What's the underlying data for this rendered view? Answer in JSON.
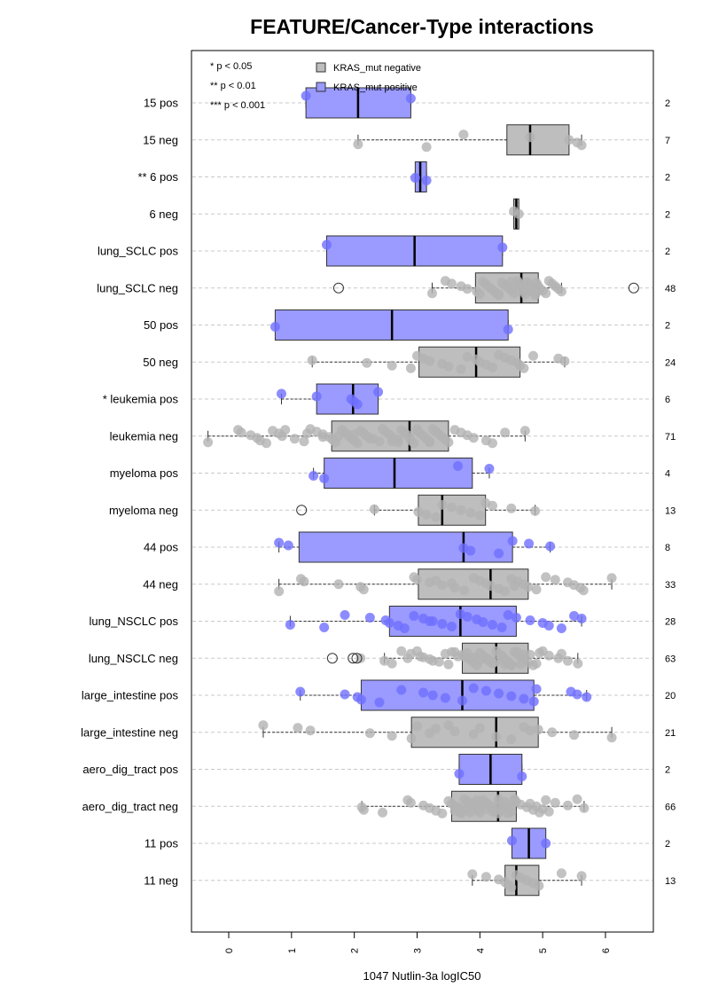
{
  "chart_data": {
    "type": "box",
    "title": "FEATURE/Cancer-Type interactions",
    "xlabel": "1047 Nutlin-3a logIC50",
    "xlim": [
      -0.6,
      6.75
    ],
    "x_ticks": [
      0,
      1,
      2,
      3,
      4,
      5,
      6
    ],
    "x_tick_labels": [
      "0",
      "1",
      "2",
      "3",
      "4",
      "5",
      "6"
    ],
    "orientation": "horizontal",
    "grid": "dashed horizontal lines at each row",
    "significance_key": [
      "* p < 0.05",
      "** p < 0.01",
      "*** p < 0.001"
    ],
    "legend": {
      "position": "top",
      "entries": [
        {
          "label": "KRAS_mut negative",
          "color": "#bebebe"
        },
        {
          "label": "KRAS_mut positive",
          "color": "#9a9aff"
        }
      ]
    },
    "colors": {
      "negative_fill": "#bebebe",
      "positive_fill": "#9a9aff",
      "negative_point": "#b3b3b3",
      "positive_point": "#6f6fff",
      "grid": "#c8c8c8"
    },
    "groups": [
      {
        "label": "15 pos",
        "n": "2",
        "kind": "pos",
        "q1": 1.23,
        "median": 2.06,
        "q3": 2.9,
        "wlo": 1.23,
        "whi": 2.9,
        "points": [
          1.23,
          2.9
        ],
        "outliers": []
      },
      {
        "label": "15 neg",
        "n": "7",
        "kind": "neg",
        "q1": 4.43,
        "median": 4.8,
        "q3": 5.42,
        "wlo": 2.06,
        "whi": 5.62,
        "points": [
          2.06,
          3.15,
          3.74,
          4.8,
          5.42,
          5.55,
          5.62
        ],
        "outliers": []
      },
      {
        "label": "** 6 pos",
        "n": "2",
        "kind": "pos",
        "q1": 2.97,
        "median": 3.05,
        "q3": 3.15,
        "wlo": 2.97,
        "whi": 3.15,
        "points": [
          2.97,
          3.15
        ],
        "outliers": []
      },
      {
        "label": "6 neg",
        "n": "2",
        "kind": "neg",
        "q1": 4.54,
        "median": 4.58,
        "q3": 4.62,
        "wlo": 4.54,
        "whi": 4.62,
        "points": [
          4.54,
          4.62
        ],
        "outliers": []
      },
      {
        "label": "lung_SCLC pos",
        "n": "2",
        "kind": "pos",
        "q1": 1.56,
        "median": 2.96,
        "q3": 4.36,
        "wlo": 1.56,
        "whi": 4.36,
        "points": [
          1.56,
          4.36
        ],
        "outliers": []
      },
      {
        "label": "lung_SCLC neg",
        "n": "48",
        "kind": "neg",
        "q1": 3.93,
        "median": 4.66,
        "q3": 4.93,
        "wlo": 3.24,
        "whi": 5.3,
        "points": [
          3.24,
          3.45,
          3.55,
          3.7,
          3.8,
          3.95,
          4.0,
          4.05,
          4.1,
          4.15,
          4.2,
          4.25,
          4.3,
          4.35,
          4.4,
          4.45,
          4.5,
          4.55,
          4.6,
          4.62,
          4.65,
          4.68,
          4.7,
          4.72,
          4.75,
          4.78,
          4.8,
          4.83,
          4.85,
          4.88,
          4.9,
          4.92,
          4.95,
          5.0,
          5.05,
          5.1,
          5.15,
          5.2,
          5.25,
          5.3,
          4.3,
          4.5,
          4.6,
          4.7,
          4.8,
          4.9
        ],
        "outliers": [
          1.75,
          6.45
        ]
      },
      {
        "label": "50 pos",
        "n": "2",
        "kind": "pos",
        "q1": 0.74,
        "median": 2.6,
        "q3": 4.45,
        "wlo": 0.74,
        "whi": 4.45,
        "points": [
          0.74,
          4.45
        ],
        "outliers": []
      },
      {
        "label": "50 neg",
        "n": "24",
        "kind": "neg",
        "q1": 3.03,
        "median": 3.94,
        "q3": 4.64,
        "wlo": 1.33,
        "whi": 5.35,
        "points": [
          1.33,
          2.2,
          2.6,
          2.9,
          3.0,
          3.1,
          3.2,
          3.4,
          3.5,
          3.7,
          3.8,
          3.94,
          4.0,
          4.1,
          4.2,
          4.3,
          4.4,
          4.5,
          4.6,
          4.64,
          4.7,
          4.85,
          5.25,
          5.35
        ],
        "outliers": []
      },
      {
        "label": "* leukemia pos",
        "n": "6",
        "kind": "pos",
        "q1": 1.4,
        "median": 1.98,
        "q3": 2.38,
        "wlo": 0.84,
        "whi": 2.38,
        "points": [
          0.84,
          1.4,
          1.95,
          2.0,
          2.05,
          2.38
        ],
        "outliers": []
      },
      {
        "label": "leukemia neg",
        "n": "71",
        "kind": "neg",
        "q1": 1.64,
        "median": 2.88,
        "q3": 3.5,
        "wlo": -0.33,
        "whi": 4.72,
        "points": [
          -0.33,
          0.15,
          0.2,
          0.35,
          0.45,
          0.5,
          0.6,
          0.7,
          0.8,
          0.85,
          1.05,
          1.2,
          1.3,
          1.4,
          1.5,
          1.6,
          1.65,
          1.7,
          1.8,
          1.85,
          1.9,
          1.95,
          2.0,
          2.05,
          2.1,
          2.15,
          2.2,
          2.3,
          2.4,
          2.45,
          2.5,
          2.55,
          2.6,
          2.65,
          2.7,
          2.75,
          2.8,
          2.85,
          2.88,
          2.9,
          2.95,
          3.0,
          3.05,
          3.1,
          3.15,
          3.2,
          3.25,
          3.3,
          3.35,
          3.4,
          3.45,
          3.5,
          3.6,
          3.7,
          3.8,
          3.9,
          4.1,
          4.2,
          4.72,
          1.25,
          1.75,
          2.25,
          2.6,
          3.0,
          3.3,
          2.0,
          1.5,
          2.7,
          3.2,
          0.9,
          4.4
        ],
        "outliers": []
      },
      {
        "label": "myeloma pos",
        "n": "4",
        "kind": "pos",
        "q1": 1.52,
        "median": 2.64,
        "q3": 3.88,
        "wlo": 1.35,
        "whi": 4.15,
        "points": [
          1.35,
          1.52,
          3.65,
          4.15
        ],
        "outliers": []
      },
      {
        "label": "myeloma neg",
        "n": "13",
        "kind": "neg",
        "q1": 3.02,
        "median": 3.4,
        "q3": 4.09,
        "wlo": 2.32,
        "whi": 4.88,
        "points": [
          2.32,
          3.02,
          3.15,
          3.3,
          3.4,
          3.55,
          3.7,
          3.85,
          4.0,
          4.09,
          4.2,
          4.5,
          4.88
        ],
        "outliers": [
          1.16
        ]
      },
      {
        "label": "44 pos",
        "n": "8",
        "kind": "pos",
        "q1": 1.12,
        "median": 3.74,
        "q3": 4.52,
        "wlo": 0.8,
        "whi": 5.12,
        "points": [
          0.8,
          0.95,
          3.74,
          3.85,
          4.3,
          4.52,
          4.78,
          5.12
        ],
        "outliers": []
      },
      {
        "label": "44 neg",
        "n": "33",
        "kind": "neg",
        "q1": 3.02,
        "median": 4.17,
        "q3": 4.77,
        "wlo": 0.8,
        "whi": 6.1,
        "points": [
          0.8,
          1.15,
          1.2,
          1.75,
          2.1,
          2.15,
          2.95,
          3.0,
          3.2,
          3.4,
          3.6,
          3.75,
          3.9,
          4.0,
          4.1,
          4.17,
          4.3,
          4.4,
          4.5,
          4.6,
          4.7,
          4.77,
          4.9,
          5.05,
          5.2,
          5.4,
          5.5,
          5.6,
          5.65,
          6.1,
          3.3,
          3.55,
          4.55
        ],
        "outliers": []
      },
      {
        "label": "lung_NSCLC pos",
        "n": "28",
        "kind": "pos",
        "q1": 2.56,
        "median": 3.69,
        "q3": 4.58,
        "wlo": 0.98,
        "whi": 5.62,
        "points": [
          0.98,
          1.52,
          1.85,
          2.25,
          2.5,
          2.56,
          2.7,
          2.8,
          2.95,
          3.1,
          3.25,
          3.4,
          3.55,
          3.69,
          3.8,
          3.95,
          4.05,
          4.2,
          4.35,
          4.45,
          4.58,
          4.8,
          5.0,
          5.1,
          5.3,
          5.5,
          5.62,
          3.2
        ],
        "outliers": []
      },
      {
        "label": "lung_NSCLC neg",
        "n": "63",
        "kind": "neg",
        "q1": 3.72,
        "median": 4.26,
        "q3": 4.77,
        "wlo": 2.48,
        "whi": 5.56,
        "points": [
          2.1,
          2.48,
          2.6,
          2.75,
          2.9,
          3.05,
          3.2,
          3.35,
          3.5,
          3.6,
          3.72,
          3.8,
          3.85,
          3.9,
          3.95,
          4.0,
          4.05,
          4.1,
          4.15,
          4.2,
          4.26,
          4.3,
          4.35,
          4.4,
          4.45,
          4.5,
          4.55,
          4.6,
          4.65,
          4.7,
          4.77,
          4.85,
          4.95,
          5.1,
          5.25,
          5.4,
          5.56,
          3.0,
          3.45,
          3.75,
          4.1,
          4.25,
          4.4,
          4.6,
          4.7,
          3.9,
          4.0,
          4.2,
          4.5,
          3.8,
          4.35,
          2.85,
          3.25,
          4.9,
          5.0,
          5.3,
          3.65,
          4.15,
          4.45,
          4.65,
          3.55,
          4.8,
          3.1
        ],
        "outliers": [
          1.65,
          1.98,
          2.04
        ]
      },
      {
        "label": "large_intestine pos",
        "n": "20",
        "kind": "pos",
        "q1": 2.11,
        "median": 3.72,
        "q3": 4.86,
        "wlo": 1.14,
        "whi": 5.7,
        "points": [
          1.14,
          1.85,
          2.05,
          2.11,
          2.4,
          2.75,
          3.1,
          3.25,
          3.45,
          3.72,
          3.9,
          4.1,
          4.3,
          4.5,
          4.7,
          4.86,
          4.9,
          5.45,
          5.55,
          5.7
        ],
        "outliers": []
      },
      {
        "label": "large_intestine neg",
        "n": "21",
        "kind": "neg",
        "q1": 2.91,
        "median": 4.26,
        "q3": 4.93,
        "wlo": 0.55,
        "whi": 6.1,
        "points": [
          0.55,
          1.1,
          1.3,
          2.25,
          2.6,
          2.91,
          3.0,
          3.3,
          3.6,
          3.9,
          4.26,
          4.5,
          4.7,
          4.93,
          5.15,
          5.5,
          6.1,
          3.5,
          4.0,
          4.8,
          3.2
        ],
        "outliers": []
      },
      {
        "label": "aero_dig_tract pos",
        "n": "2",
        "kind": "pos",
        "q1": 3.67,
        "median": 4.17,
        "q3": 4.67,
        "wlo": 3.67,
        "whi": 4.67,
        "points": [
          3.67,
          4.67
        ],
        "outliers": []
      },
      {
        "label": "aero_dig_tract neg",
        "n": "66",
        "kind": "neg",
        "q1": 3.55,
        "median": 4.29,
        "q3": 4.58,
        "wlo": 2.12,
        "whi": 5.66,
        "points": [
          2.12,
          2.15,
          2.45,
          2.85,
          2.9,
          3.1,
          3.2,
          3.3,
          3.4,
          3.5,
          3.55,
          3.6,
          3.65,
          3.7,
          3.75,
          3.8,
          3.85,
          3.9,
          3.95,
          4.0,
          4.05,
          4.1,
          4.15,
          4.2,
          4.25,
          4.29,
          4.3,
          4.35,
          4.4,
          4.45,
          4.5,
          4.55,
          4.58,
          4.65,
          4.75,
          4.85,
          4.95,
          5.05,
          5.2,
          5.4,
          5.66,
          3.6,
          3.7,
          3.8,
          3.9,
          4.0,
          4.1,
          4.2,
          4.3,
          4.4,
          4.5,
          3.65,
          3.75,
          3.85,
          3.95,
          4.05,
          4.15,
          4.25,
          4.35,
          4.45,
          4.55,
          4.8,
          4.9,
          5.0,
          5.1,
          5.55
        ],
        "outliers": []
      },
      {
        "label": "11 pos",
        "n": "2",
        "kind": "pos",
        "q1": 4.51,
        "median": 4.78,
        "q3": 5.05,
        "wlo": 4.51,
        "whi": 5.05,
        "points": [
          4.51,
          5.05
        ],
        "outliers": []
      },
      {
        "label": "11 neg",
        "n": "13",
        "kind": "neg",
        "q1": 4.4,
        "median": 4.58,
        "q3": 4.94,
        "wlo": 3.88,
        "whi": 5.62,
        "points": [
          3.88,
          4.1,
          4.3,
          4.4,
          4.45,
          4.5,
          4.58,
          4.65,
          4.75,
          4.85,
          4.94,
          5.3,
          5.62
        ],
        "outliers": []
      }
    ]
  }
}
